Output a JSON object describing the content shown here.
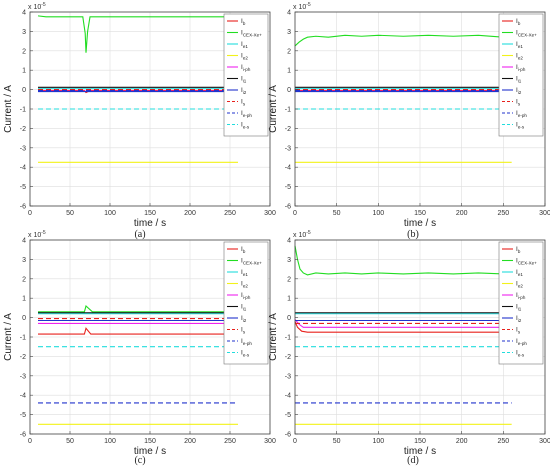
{
  "figure": {
    "captions": [
      "(a)",
      "(b)",
      "(c)",
      "(d)"
    ],
    "exponent_label": "x 10",
    "exponent_power": "-5"
  },
  "legend_entries": [
    {
      "base": "I",
      "sub": "b",
      "color": "#e8201c",
      "dash": "solid"
    },
    {
      "base": "I",
      "sub": "CEX-Xe+",
      "color": "#22dd22",
      "dash": "solid"
    },
    {
      "base": "I",
      "sub": "e1",
      "color": "#22dddd",
      "dash": "solid"
    },
    {
      "base": "I",
      "sub": "e2",
      "color": "#f2f21a",
      "dash": "solid"
    },
    {
      "base": "I",
      "sub": "i-ph",
      "color": "#ee22ee",
      "dash": "solid"
    },
    {
      "base": "I",
      "sub": "i1",
      "color": "#111111",
      "dash": "solid"
    },
    {
      "base": "I",
      "sub": "i2",
      "color": "#2233cc",
      "dash": "solid"
    },
    {
      "base": "I",
      "sub": "s",
      "color": "#e8201c",
      "dash": "dashed"
    },
    {
      "base": "I",
      "sub": "e-ph",
      "color": "#2233cc",
      "dash": "dashed"
    },
    {
      "base": "I",
      "sub": "e-s",
      "color": "#22dddd",
      "dash": "dashed"
    }
  ],
  "chart_data": [
    {
      "type": "line",
      "caption": "(a)",
      "xlabel": "time / s",
      "ylabel": "Current / A",
      "xlim": [
        0,
        300
      ],
      "ylim": [
        -6,
        4
      ],
      "y_scale_note": "x 10^-5",
      "xticks": [
        0,
        50,
        100,
        150,
        200,
        250,
        300
      ],
      "yticks": [
        -6,
        -5,
        -4,
        -3,
        -2,
        -1,
        0,
        1,
        2,
        3,
        4
      ],
      "grid": true,
      "legend_position": "right",
      "series": [
        {
          "name": "Ib",
          "color": "#e8201c",
          "dash": "solid",
          "x": [
            10,
            68,
            70,
            75,
            260
          ],
          "y": [
            -0.05,
            -0.05,
            -0.15,
            -0.05,
            -0.05
          ]
        },
        {
          "name": "ICEX-Xe+",
          "color": "#22dd22",
          "dash": "solid",
          "x": [
            10,
            20,
            66,
            69,
            70,
            72,
            75,
            260
          ],
          "y": [
            3.8,
            3.75,
            3.75,
            2.9,
            1.9,
            3.0,
            3.75,
            3.75
          ]
        },
        {
          "name": "Ie1",
          "color": "#22dddd",
          "dash": "solid",
          "x": [
            10,
            260
          ],
          "y": [
            0.05,
            0.05
          ]
        },
        {
          "name": "Ie2",
          "color": "#f2f21a",
          "dash": "solid",
          "x": [
            10,
            260
          ],
          "y": [
            -3.75,
            -3.75
          ]
        },
        {
          "name": "Ii-ph",
          "color": "#ee22ee",
          "dash": "solid",
          "x": [
            10,
            260
          ],
          "y": [
            -0.08,
            -0.08
          ]
        },
        {
          "name": "Ii1",
          "color": "#111111",
          "dash": "solid",
          "x": [
            10,
            260
          ],
          "y": [
            0.12,
            0.12
          ]
        },
        {
          "name": "Ii2",
          "color": "#2233cc",
          "dash": "solid",
          "x": [
            10,
            260
          ],
          "y": [
            -0.1,
            -0.1
          ]
        },
        {
          "name": "Is",
          "color": "#e8201c",
          "dash": "dashed",
          "x": [
            10,
            260
          ],
          "y": [
            0.0,
            0.0
          ]
        },
        {
          "name": "Ie-ph",
          "color": "#2233cc",
          "dash": "dashed",
          "x": [
            10,
            260
          ],
          "y": [
            -0.05,
            -0.05
          ]
        },
        {
          "name": "Ie-s",
          "color": "#22dddd",
          "dash": "dashed",
          "x": [
            10,
            260
          ],
          "y": [
            -1.0,
            -1.0
          ]
        }
      ]
    },
    {
      "type": "line",
      "caption": "(b)",
      "xlabel": "time / s",
      "ylabel": "Current / A",
      "xlim": [
        0,
        300
      ],
      "ylim": [
        -6,
        4
      ],
      "y_scale_note": "x 10^-5",
      "xticks": [
        0,
        50,
        100,
        150,
        200,
        250,
        300
      ],
      "yticks": [
        -6,
        -5,
        -4,
        -3,
        -2,
        -1,
        0,
        1,
        2,
        3,
        4
      ],
      "grid": true,
      "legend_position": "right",
      "series": [
        {
          "name": "Ib",
          "color": "#e8201c",
          "dash": "solid",
          "x": [
            0,
            260
          ],
          "y": [
            -0.05,
            -0.05
          ]
        },
        {
          "name": "ICEX-Xe+",
          "color": "#22dd22",
          "dash": "solid",
          "x": [
            0,
            5,
            10,
            15,
            25,
            40,
            60,
            80,
            100,
            130,
            160,
            190,
            220,
            250,
            260
          ],
          "y": [
            2.25,
            2.45,
            2.6,
            2.7,
            2.75,
            2.7,
            2.8,
            2.75,
            2.8,
            2.75,
            2.8,
            2.75,
            2.8,
            2.7,
            2.75
          ]
        },
        {
          "name": "Ie1",
          "color": "#22dddd",
          "dash": "solid",
          "x": [
            0,
            260
          ],
          "y": [
            0.05,
            0.05
          ]
        },
        {
          "name": "Ie2",
          "color": "#f2f21a",
          "dash": "solid",
          "x": [
            0,
            260
          ],
          "y": [
            -3.75,
            -3.75
          ]
        },
        {
          "name": "Ii-ph",
          "color": "#ee22ee",
          "dash": "solid",
          "x": [
            0,
            260
          ],
          "y": [
            -0.08,
            -0.08
          ]
        },
        {
          "name": "Ii1",
          "color": "#111111",
          "dash": "solid",
          "x": [
            0,
            260
          ],
          "y": [
            0.12,
            0.12
          ]
        },
        {
          "name": "Ii2",
          "color": "#2233cc",
          "dash": "solid",
          "x": [
            0,
            260
          ],
          "y": [
            -0.1,
            -0.1
          ]
        },
        {
          "name": "Is",
          "color": "#e8201c",
          "dash": "dashed",
          "x": [
            0,
            260
          ],
          "y": [
            0.0,
            0.0
          ]
        },
        {
          "name": "Ie-ph",
          "color": "#2233cc",
          "dash": "dashed",
          "x": [
            0,
            260
          ],
          "y": [
            -0.05,
            -0.05
          ]
        },
        {
          "name": "Ie-s",
          "color": "#22dddd",
          "dash": "dashed",
          "x": [
            0,
            260
          ],
          "y": [
            -1.0,
            -1.0
          ]
        }
      ]
    },
    {
      "type": "line",
      "caption": "(c)",
      "xlabel": "time / s",
      "ylabel": "Current / A",
      "xlim": [
        0,
        300
      ],
      "ylim": [
        -6,
        4
      ],
      "y_scale_note": "x 10^-5",
      "xticks": [
        0,
        50,
        100,
        150,
        200,
        250,
        300
      ],
      "yticks": [
        -6,
        -5,
        -4,
        -3,
        -2,
        -1,
        0,
        1,
        2,
        3,
        4
      ],
      "grid": true,
      "legend_position": "right",
      "series": [
        {
          "name": "Ib",
          "color": "#e8201c",
          "dash": "solid",
          "x": [
            10,
            68,
            70,
            76,
            260
          ],
          "y": [
            -0.85,
            -0.85,
            -0.55,
            -0.85,
            -0.85
          ]
        },
        {
          "name": "ICEX-Xe+",
          "color": "#22dd22",
          "dash": "solid",
          "x": [
            10,
            68,
            70,
            78,
            260
          ],
          "y": [
            0.3,
            0.3,
            0.6,
            0.3,
            0.3
          ]
        },
        {
          "name": "Ie1",
          "color": "#22dddd",
          "dash": "solid",
          "x": [
            10,
            260
          ],
          "y": [
            0.2,
            0.2
          ]
        },
        {
          "name": "Ie2",
          "color": "#f2f21a",
          "dash": "solid",
          "x": [
            10,
            260
          ],
          "y": [
            -5.5,
            -5.5
          ]
        },
        {
          "name": "Ii-ph",
          "color": "#ee22ee",
          "dash": "solid",
          "x": [
            10,
            260
          ],
          "y": [
            -0.3,
            -0.3
          ]
        },
        {
          "name": "Ii1",
          "color": "#111111",
          "dash": "solid",
          "x": [
            10,
            260
          ],
          "y": [
            0.25,
            0.25
          ]
        },
        {
          "name": "Ii2",
          "color": "#2233cc",
          "dash": "solid",
          "x": [
            10,
            260
          ],
          "y": [
            -0.15,
            -0.15
          ]
        },
        {
          "name": "Is",
          "color": "#e8201c",
          "dash": "dashed",
          "x": [
            10,
            260
          ],
          "y": [
            -0.05,
            -0.05
          ]
        },
        {
          "name": "Ie-ph",
          "color": "#2233cc",
          "dash": "dashed",
          "x": [
            10,
            260
          ],
          "y": [
            -4.4,
            -4.4
          ]
        },
        {
          "name": "Ie-s",
          "color": "#22dddd",
          "dash": "dashed",
          "x": [
            10,
            260
          ],
          "y": [
            -1.5,
            -1.5
          ]
        }
      ]
    },
    {
      "type": "line",
      "caption": "(d)",
      "xlabel": "time / s",
      "ylabel": "Current / A",
      "xlim": [
        0,
        300
      ],
      "ylim": [
        -6,
        4
      ],
      "y_scale_note": "x 10^-5",
      "xticks": [
        0,
        50,
        100,
        150,
        200,
        250,
        300
      ],
      "yticks": [
        -6,
        -5,
        -4,
        -3,
        -2,
        -1,
        0,
        1,
        2,
        3,
        4
      ],
      "grid": true,
      "legend_position": "right",
      "series": [
        {
          "name": "Ib",
          "color": "#e8201c",
          "dash": "solid",
          "x": [
            0,
            3,
            8,
            15,
            260
          ],
          "y": [
            -0.2,
            -0.5,
            -0.7,
            -0.75,
            -0.75
          ]
        },
        {
          "name": "ICEX-Xe+",
          "color": "#22dd22",
          "dash": "solid",
          "x": [
            0,
            3,
            6,
            10,
            15,
            25,
            40,
            60,
            80,
            100,
            130,
            160,
            190,
            220,
            250,
            260
          ],
          "y": [
            3.7,
            3.0,
            2.5,
            2.3,
            2.2,
            2.3,
            2.25,
            2.3,
            2.25,
            2.3,
            2.25,
            2.3,
            2.25,
            2.3,
            2.25,
            2.3
          ]
        },
        {
          "name": "Ie1",
          "color": "#22dddd",
          "dash": "solid",
          "x": [
            0,
            260
          ],
          "y": [
            0.2,
            0.2
          ]
        },
        {
          "name": "Ie2",
          "color": "#f2f21a",
          "dash": "solid",
          "x": [
            0,
            260
          ],
          "y": [
            -5.5,
            -5.5
          ]
        },
        {
          "name": "Ii-ph",
          "color": "#ee22ee",
          "dash": "solid",
          "x": [
            0,
            5,
            10,
            260
          ],
          "y": [
            -0.1,
            -0.35,
            -0.5,
            -0.5
          ]
        },
        {
          "name": "Ii1",
          "color": "#111111",
          "dash": "solid",
          "x": [
            0,
            260
          ],
          "y": [
            0.25,
            0.25
          ]
        },
        {
          "name": "Ii2",
          "color": "#2233cc",
          "dash": "solid",
          "x": [
            0,
            260
          ],
          "y": [
            -0.15,
            -0.15
          ]
        },
        {
          "name": "Is",
          "color": "#e8201c",
          "dash": "dashed",
          "x": [
            0,
            260
          ],
          "y": [
            -0.3,
            -0.3
          ]
        },
        {
          "name": "Ie-ph",
          "color": "#2233cc",
          "dash": "dashed",
          "x": [
            0,
            260
          ],
          "y": [
            -4.4,
            -4.4
          ]
        },
        {
          "name": "Ie-s",
          "color": "#22dddd",
          "dash": "dashed",
          "x": [
            0,
            260
          ],
          "y": [
            -1.5,
            -1.5
          ]
        }
      ]
    }
  ]
}
